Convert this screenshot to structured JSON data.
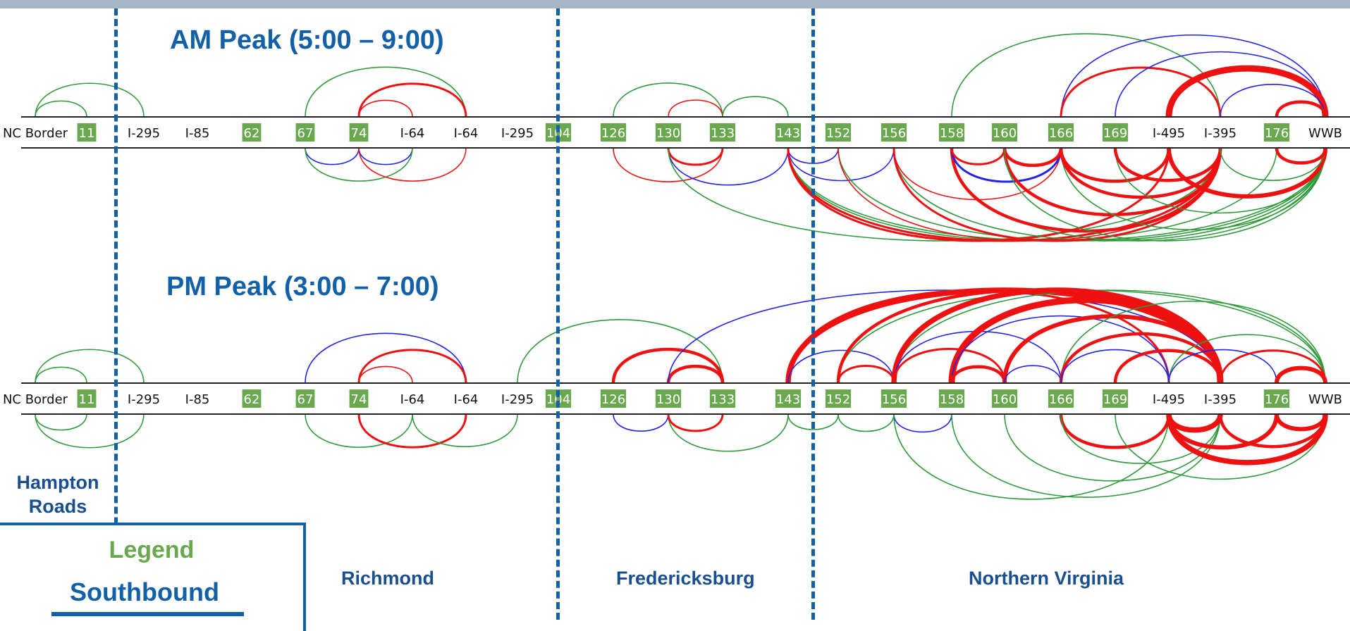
{
  "am_title": "AM Peak (5:00 – 9:00)",
  "pm_title": "PM Peak (3:00 – 7:00)",
  "regions": {
    "hampton_roads_line1": "Hampton",
    "hampton_roads_line2": "Roads",
    "richmond": "Richmond",
    "fredericksburg": "Fredericksburg",
    "northern_virginia": "Northern Virginia"
  },
  "legend": {
    "title": "Legend",
    "direction": "Southbound"
  },
  "nodes": [
    {
      "label": "NC Border",
      "boxed": false
    },
    {
      "label": "11",
      "boxed": true
    },
    {
      "label": "I-295",
      "boxed": false
    },
    {
      "label": "I-85",
      "boxed": false
    },
    {
      "label": "62",
      "boxed": true
    },
    {
      "label": "67",
      "boxed": true
    },
    {
      "label": "74",
      "boxed": true
    },
    {
      "label": "I-64",
      "boxed": false
    },
    {
      "label": "I-64",
      "boxed": false
    },
    {
      "label": "I-295",
      "boxed": false
    },
    {
      "label": "104",
      "boxed": true
    },
    {
      "label": "126",
      "boxed": true
    },
    {
      "label": "130",
      "boxed": true
    },
    {
      "label": "133",
      "boxed": true
    },
    {
      "label": "143",
      "boxed": true
    },
    {
      "label": "152",
      "boxed": true
    },
    {
      "label": "156",
      "boxed": true
    },
    {
      "label": "158",
      "boxed": true
    },
    {
      "label": "160",
      "boxed": true
    },
    {
      "label": "166",
      "boxed": true
    },
    {
      "label": "169",
      "boxed": true
    },
    {
      "label": "I-495",
      "boxed": false
    },
    {
      "label": "I-395",
      "boxed": false
    },
    {
      "label": "176",
      "boxed": true
    },
    {
      "label": "WWB",
      "boxed": false
    }
  ],
  "colors": {
    "green": "#2e9a3a",
    "red": "#ee1111",
    "blue": "#2222ee",
    "node_box": "#6aa84f",
    "axis": "#222222",
    "divider": "#1160a8"
  },
  "am_arcs": [
    {
      "from": 0,
      "to": 1,
      "side": "above",
      "color": "green",
      "weight": 1
    },
    {
      "from": 0,
      "to": 2,
      "side": "above",
      "color": "green",
      "weight": 1
    },
    {
      "from": 5,
      "to": 8,
      "side": "above",
      "color": "green",
      "weight": 1
    },
    {
      "from": 6,
      "to": 8,
      "side": "above",
      "color": "red",
      "weight": 2
    },
    {
      "from": 6,
      "to": 7,
      "side": "above",
      "color": "red",
      "weight": 1
    },
    {
      "from": 11,
      "to": 13,
      "side": "above",
      "color": "green",
      "weight": 1
    },
    {
      "from": 12,
      "to": 13,
      "side": "above",
      "color": "red",
      "weight": 1
    },
    {
      "from": 13,
      "to": 14,
      "side": "above",
      "color": "green",
      "weight": 1
    },
    {
      "from": 17,
      "to": 22,
      "side": "above",
      "color": "green",
      "weight": 1
    },
    {
      "from": 19,
      "to": 24,
      "side": "above",
      "color": "blue",
      "weight": 1
    },
    {
      "from": 19,
      "to": 22,
      "side": "above",
      "color": "red",
      "weight": 2
    },
    {
      "from": 20,
      "to": 24,
      "side": "above",
      "color": "blue",
      "weight": 1
    },
    {
      "from": 21,
      "to": 24,
      "side": "above",
      "color": "red",
      "weight": 6
    },
    {
      "from": 22,
      "to": 24,
      "side": "above",
      "color": "blue",
      "weight": 1
    },
    {
      "from": 23,
      "to": 24,
      "side": "above",
      "color": "red",
      "weight": 3
    },
    {
      "from": 5,
      "to": 6,
      "side": "below",
      "color": "blue",
      "weight": 1
    },
    {
      "from": 6,
      "to": 7,
      "side": "below",
      "color": "blue",
      "weight": 1
    },
    {
      "from": 5,
      "to": 7,
      "side": "below",
      "color": "green",
      "weight": 1
    },
    {
      "from": 6,
      "to": 8,
      "side": "below",
      "color": "red",
      "weight": 1
    },
    {
      "from": 11,
      "to": 13,
      "side": "below",
      "color": "red",
      "weight": 1
    },
    {
      "from": 12,
      "to": 14,
      "side": "below",
      "color": "blue",
      "weight": 1
    },
    {
      "from": 12,
      "to": 13,
      "side": "below",
      "color": "red",
      "weight": 2
    },
    {
      "from": 12,
      "to": 22,
      "side": "below",
      "color": "green",
      "weight": 1
    },
    {
      "from": 14,
      "to": 15,
      "side": "below",
      "color": "blue",
      "weight": 1
    },
    {
      "from": 14,
      "to": 16,
      "side": "below",
      "color": "blue",
      "weight": 1
    },
    {
      "from": 14,
      "to": 24,
      "side": "below",
      "color": "green",
      "weight": 1
    },
    {
      "from": 14,
      "to": 23,
      "side": "below",
      "color": "green",
      "weight": 1
    },
    {
      "from": 14,
      "to": 22,
      "side": "below",
      "color": "red",
      "weight": 2
    },
    {
      "from": 14,
      "to": 21,
      "side": "below",
      "color": "red",
      "weight": 2
    },
    {
      "from": 15,
      "to": 24,
      "side": "below",
      "color": "green",
      "weight": 1
    },
    {
      "from": 15,
      "to": 22,
      "side": "below",
      "color": "red",
      "weight": 1
    },
    {
      "from": 16,
      "to": 24,
      "side": "below",
      "color": "green",
      "weight": 1
    },
    {
      "from": 16,
      "to": 22,
      "side": "below",
      "color": "red",
      "weight": 2
    },
    {
      "from": 16,
      "to": 19,
      "side": "below",
      "color": "red",
      "weight": 1
    },
    {
      "from": 17,
      "to": 24,
      "side": "below",
      "color": "green",
      "weight": 1
    },
    {
      "from": 17,
      "to": 22,
      "side": "below",
      "color": "red",
      "weight": 3
    },
    {
      "from": 17,
      "to": 19,
      "side": "below",
      "color": "blue",
      "weight": 2
    },
    {
      "from": 17,
      "to": 18,
      "side": "below",
      "color": "red",
      "weight": 2
    },
    {
      "from": 18,
      "to": 22,
      "side": "below",
      "color": "red",
      "weight": 3
    },
    {
      "from": 18,
      "to": 19,
      "side": "below",
      "color": "red",
      "weight": 3
    },
    {
      "from": 18,
      "to": 24,
      "side": "below",
      "color": "green",
      "weight": 1
    },
    {
      "from": 19,
      "to": 24,
      "side": "below",
      "color": "green",
      "weight": 1
    },
    {
      "from": 19,
      "to": 22,
      "side": "below",
      "color": "red",
      "weight": 3
    },
    {
      "from": 19,
      "to": 21,
      "side": "below",
      "color": "red",
      "weight": 3
    },
    {
      "from": 20,
      "to": 24,
      "side": "below",
      "color": "green",
      "weight": 1
    },
    {
      "from": 20,
      "to": 22,
      "side": "below",
      "color": "red",
      "weight": 3
    },
    {
      "from": 21,
      "to": 24,
      "side": "below",
      "color": "red",
      "weight": 4
    },
    {
      "from": 22,
      "to": 24,
      "side": "below",
      "color": "green",
      "weight": 1
    },
    {
      "from": 23,
      "to": 24,
      "side": "below",
      "color": "red",
      "weight": 3
    }
  ],
  "pm_arcs": [
    {
      "from": 0,
      "to": 1,
      "side": "above",
      "color": "green",
      "weight": 1
    },
    {
      "from": 0,
      "to": 2,
      "side": "above",
      "color": "green",
      "weight": 1
    },
    {
      "from": 5,
      "to": 8,
      "side": "above",
      "color": "blue",
      "weight": 1
    },
    {
      "from": 6,
      "to": 8,
      "side": "above",
      "color": "red",
      "weight": 2
    },
    {
      "from": 6,
      "to": 7,
      "side": "above",
      "color": "red",
      "weight": 1
    },
    {
      "from": 9,
      "to": 13,
      "side": "above",
      "color": "green",
      "weight": 1
    },
    {
      "from": 11,
      "to": 13,
      "side": "above",
      "color": "red",
      "weight": 3
    },
    {
      "from": 12,
      "to": 13,
      "side": "above",
      "color": "red",
      "weight": 3
    },
    {
      "from": 12,
      "to": 22,
      "side": "above",
      "color": "blue",
      "weight": 1
    },
    {
      "from": 14,
      "to": 22,
      "side": "above",
      "color": "red",
      "weight": 5
    },
    {
      "from": 14,
      "to": 21,
      "side": "above",
      "color": "red",
      "weight": 2
    },
    {
      "from": 14,
      "to": 16,
      "side": "above",
      "color": "blue",
      "weight": 1
    },
    {
      "from": 15,
      "to": 24,
      "side": "above",
      "color": "green",
      "weight": 1
    },
    {
      "from": 15,
      "to": 22,
      "side": "above",
      "color": "red",
      "weight": 3
    },
    {
      "from": 15,
      "to": 16,
      "side": "above",
      "color": "red",
      "weight": 2
    },
    {
      "from": 16,
      "to": 24,
      "side": "above",
      "color": "green",
      "weight": 1
    },
    {
      "from": 16,
      "to": 22,
      "side": "above",
      "color": "red",
      "weight": 5
    },
    {
      "from": 16,
      "to": 19,
      "side": "above",
      "color": "blue",
      "weight": 1
    },
    {
      "from": 16,
      "to": 18,
      "side": "above",
      "color": "red",
      "weight": 2
    },
    {
      "from": 17,
      "to": 22,
      "side": "above",
      "color": "red",
      "weight": 6
    },
    {
      "from": 17,
      "to": 21,
      "side": "above",
      "color": "blue",
      "weight": 1
    },
    {
      "from": 17,
      "to": 18,
      "side": "above",
      "color": "red",
      "weight": 3
    },
    {
      "from": 18,
      "to": 22,
      "side": "above",
      "color": "red",
      "weight": 4
    },
    {
      "from": 18,
      "to": 19,
      "side": "above",
      "color": "blue",
      "weight": 1
    },
    {
      "from": 19,
      "to": 24,
      "side": "above",
      "color": "green",
      "weight": 1
    },
    {
      "from": 19,
      "to": 22,
      "side": "above",
      "color": "red",
      "weight": 3
    },
    {
      "from": 19,
      "to": 21,
      "side": "above",
      "color": "blue",
      "weight": 1
    },
    {
      "from": 20,
      "to": 22,
      "side": "above",
      "color": "red",
      "weight": 3
    },
    {
      "from": 21,
      "to": 24,
      "side": "above",
      "color": "green",
      "weight": 1
    },
    {
      "from": 21,
      "to": 23,
      "side": "above",
      "color": "blue",
      "weight": 1
    },
    {
      "from": 22,
      "to": 24,
      "side": "above",
      "color": "red",
      "weight": 2
    },
    {
      "from": 23,
      "to": 24,
      "side": "above",
      "color": "red",
      "weight": 4
    },
    {
      "from": 0,
      "to": 1,
      "side": "below",
      "color": "green",
      "weight": 1
    },
    {
      "from": 0,
      "to": 2,
      "side": "below",
      "color": "green",
      "weight": 1
    },
    {
      "from": 5,
      "to": 7,
      "side": "below",
      "color": "green",
      "weight": 1
    },
    {
      "from": 6,
      "to": 8,
      "side": "below",
      "color": "red",
      "weight": 2
    },
    {
      "from": 7,
      "to": 9,
      "side": "below",
      "color": "green",
      "weight": 1
    },
    {
      "from": 11,
      "to": 12,
      "side": "below",
      "color": "blue",
      "weight": 1
    },
    {
      "from": 12,
      "to": 14,
      "side": "below",
      "color": "green",
      "weight": 1
    },
    {
      "from": 12,
      "to": 13,
      "side": "below",
      "color": "red",
      "weight": 2
    },
    {
      "from": 14,
      "to": 15,
      "side": "below",
      "color": "green",
      "weight": 1
    },
    {
      "from": 15,
      "to": 16,
      "side": "below",
      "color": "green",
      "weight": 1
    },
    {
      "from": 16,
      "to": 17,
      "side": "below",
      "color": "blue",
      "weight": 1
    },
    {
      "from": 16,
      "to": 21,
      "side": "below",
      "color": "green",
      "weight": 1
    },
    {
      "from": 17,
      "to": 22,
      "side": "below",
      "color": "green",
      "weight": 1
    },
    {
      "from": 18,
      "to": 22,
      "side": "below",
      "color": "green",
      "weight": 1
    },
    {
      "from": 19,
      "to": 21,
      "side": "below",
      "color": "red",
      "weight": 3
    },
    {
      "from": 19,
      "to": 22,
      "side": "below",
      "color": "green",
      "weight": 1
    },
    {
      "from": 20,
      "to": 24,
      "side": "below",
      "color": "green",
      "weight": 1
    },
    {
      "from": 21,
      "to": 22,
      "side": "below",
      "color": "red",
      "weight": 5
    },
    {
      "from": 21,
      "to": 23,
      "side": "below",
      "color": "red",
      "weight": 4
    },
    {
      "from": 21,
      "to": 24,
      "side": "below",
      "color": "red",
      "weight": 5
    },
    {
      "from": 22,
      "to": 24,
      "side": "below",
      "color": "red",
      "weight": 3
    },
    {
      "from": 23,
      "to": 24,
      "side": "below",
      "color": "red",
      "weight": 4
    }
  ]
}
